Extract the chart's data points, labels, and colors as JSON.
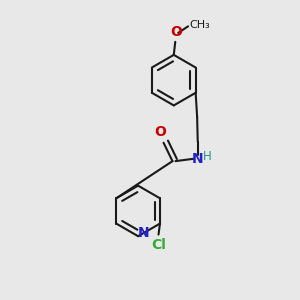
{
  "bg_color": "#e8e8e8",
  "bond_color": "#1a1a1a",
  "N_color": "#2222cc",
  "O_color": "#cc0000",
  "Cl_color": "#33aa33",
  "H_color": "#2a9090",
  "line_width": 1.5,
  "font_size": 10,
  "dpi": 100,
  "xlim": [
    0,
    10
  ],
  "ylim": [
    0,
    10
  ]
}
